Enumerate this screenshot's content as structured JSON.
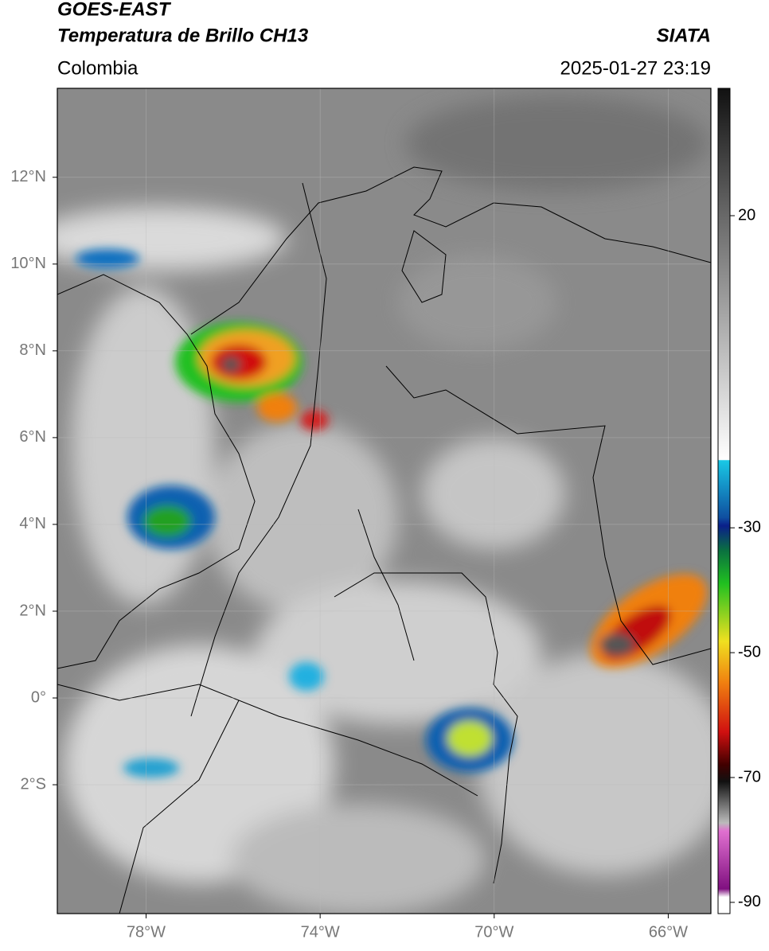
{
  "header": {
    "title": "GOES-EAST",
    "subtitle": "Temperatura de Brillo CH13",
    "source": "SIATA",
    "region": "Colombia",
    "datetime": "2025-01-27 23:19"
  },
  "map": {
    "lonlim": [
      -80.04,
      -65.02
    ],
    "latlim": [
      -4.97,
      14.05
    ],
    "lon_ticks": [
      {
        "value": -78,
        "label": "78°W"
      },
      {
        "value": -74,
        "label": "74°W"
      },
      {
        "value": -70,
        "label": "70°W"
      },
      {
        "value": -66,
        "label": "66°W"
      }
    ],
    "lat_ticks": [
      {
        "value": 12,
        "label": "12°N"
      },
      {
        "value": 10,
        "label": "10°N"
      },
      {
        "value": 8,
        "label": "8°N"
      },
      {
        "value": 6,
        "label": "6°N"
      },
      {
        "value": 4,
        "label": "4°N"
      },
      {
        "value": 2,
        "label": "2°N"
      },
      {
        "value": 0,
        "label": "0°"
      },
      {
        "value": -2,
        "label": "2°S"
      }
    ],
    "colorbar": {
      "lim": [
        -91.8,
        40.4
      ],
      "ticks": [
        20,
        -30,
        -50,
        -70,
        -90
      ]
    }
  }
}
